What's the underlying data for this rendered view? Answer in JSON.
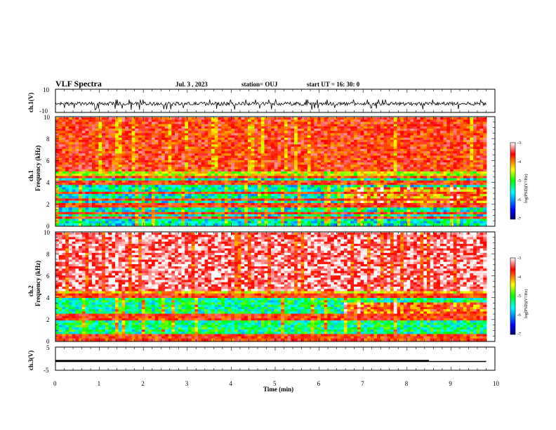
{
  "header": {
    "title": "VLF Spectra",
    "date": "Jul. 3 , 2023",
    "station": "station= OUJ",
    "start": "start UT = 16: 30: 0"
  },
  "chart_data": [
    {
      "type": "line",
      "ylabel": "ch.1(V)",
      "ylim": [
        -10,
        10
      ],
      "ytick_labels": [
        "10",
        "-10"
      ],
      "xlim": [
        0,
        10
      ],
      "description_values": {
        "baseline": -2.5,
        "spike_min": -8,
        "spike_max": 1
      }
    },
    {
      "type": "heatmap",
      "ylabel": "ch.1",
      "ylabel2": "Frequency (kHz)",
      "ylim": [
        0,
        10
      ],
      "ytick_labels": [
        "0",
        "2",
        "4",
        "6",
        "8",
        "10"
      ],
      "xlim": [
        0,
        9.8
      ],
      "colorbar": {
        "label": "log(PSD)(V²/Hz)",
        "range": [
          -7,
          -3
        ],
        "tick_labels": [
          "-3",
          "-4",
          "-5",
          "-6",
          "-7"
        ],
        "colors": [
          "#000070",
          "#0000ff",
          "#00ffff",
          "#00ff00",
          "#ffff00",
          "#ff0000",
          "#ffffff"
        ]
      },
      "features": {
        "band_low_kHz": [
          0,
          4.5
        ],
        "broadband_above_kHz": 5,
        "transition_min": 6.5
      }
    },
    {
      "type": "heatmap",
      "ylabel": "ch.2",
      "ylabel2": "Frequency (kHz)",
      "ylim": [
        0,
        10
      ],
      "ytick_labels": [
        "0",
        "2",
        "4",
        "6",
        "8",
        "10"
      ],
      "xlim": [
        0,
        9.8
      ],
      "colorbar": {
        "label": "log(PSD)(V²/Hz)",
        "range": [
          -7,
          -3
        ],
        "tick_labels": [
          "-3",
          "-4",
          "-5",
          "-6",
          "-7"
        ]
      },
      "features": {
        "band_low_kHz": [
          0,
          4
        ],
        "broadband_above_kHz": 4.5,
        "transition_min": 6.5
      }
    },
    {
      "type": "line",
      "ylabel": "ch.3(V)",
      "ylim": [
        -5,
        5
      ],
      "ytick_labels": [
        "5",
        "-5"
      ],
      "xlim": [
        0,
        10
      ],
      "segments": [
        {
          "x": [
            0,
            8.5
          ],
          "y": [
            -1,
            -1
          ]
        },
        {
          "x": [
            8.5,
            9.8
          ],
          "y": [
            -1.2,
            -1.2
          ]
        }
      ]
    }
  ],
  "xaxis": {
    "label": "Time (min)",
    "ticks": [
      0,
      1,
      2,
      3,
      4,
      5,
      6,
      7,
      8,
      9,
      10
    ],
    "tick_labels": [
      "0",
      "1",
      "2",
      "3",
      "4",
      "5",
      "6",
      "7",
      "8",
      "9",
      "10"
    ]
  }
}
